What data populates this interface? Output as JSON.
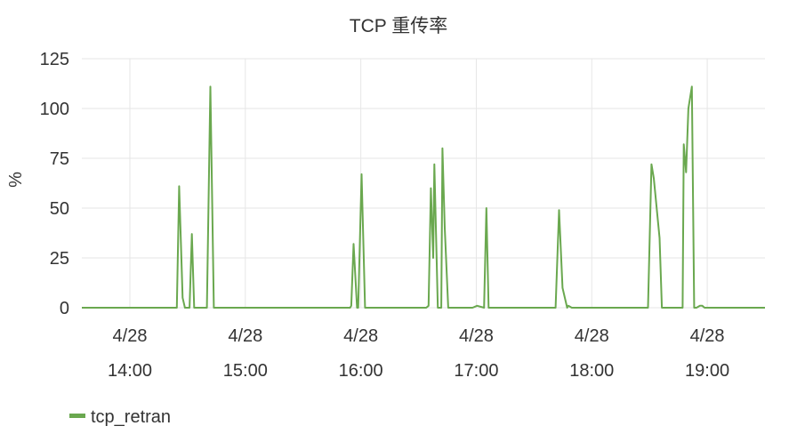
{
  "chart_data": {
    "type": "line",
    "title": "TCP 重传率",
    "ylabel": "%",
    "xlabel": "",
    "ylim": [
      0,
      125
    ],
    "y_ticks": [
      0,
      25,
      50,
      75,
      100,
      125
    ],
    "x_range_hours": [
      13.417,
      19.333
    ],
    "x_ticks": [
      {
        "t": 13.833,
        "date": "4/28",
        "time": "14:00"
      },
      {
        "t": 14.833,
        "date": "4/28",
        "time": "15:00"
      },
      {
        "t": 15.833,
        "date": "4/28",
        "time": "16:00"
      },
      {
        "t": 16.833,
        "date": "4/28",
        "time": "17:00"
      },
      {
        "t": 17.833,
        "date": "4/28",
        "time": "18:00"
      },
      {
        "t": 18.833,
        "date": "4/28",
        "time": "19:00"
      }
    ],
    "grid": true,
    "legend_position": "bottom-left",
    "colors": {
      "series": "#6aa84f",
      "grid": "#e6e6e6",
      "text": "#333333"
    },
    "series": [
      {
        "name": "tcp_retran",
        "x": [
          13.417,
          14.24,
          14.26,
          14.29,
          14.31,
          14.35,
          14.37,
          14.39,
          14.43,
          14.5,
          14.53,
          14.56,
          14.58,
          14.62,
          15.0,
          15.74,
          15.75,
          15.77,
          15.8,
          15.81,
          15.84,
          15.87,
          15.9,
          16.0,
          16.4,
          16.42,
          16.44,
          16.46,
          16.47,
          16.5,
          16.53,
          16.54,
          16.56,
          16.59,
          16.61,
          16.8,
          16.84,
          16.9,
          16.92,
          16.94,
          16.97,
          17.0,
          17.52,
          17.55,
          17.58,
          17.62,
          17.63,
          17.66,
          18.0,
          18.32,
          18.35,
          18.37,
          18.42,
          18.44,
          18.59,
          18.62,
          18.63,
          18.65,
          18.67,
          18.7,
          18.72,
          18.74,
          18.77,
          18.79,
          18.81,
          18.83,
          19.0,
          19.333
        ],
        "values": [
          0,
          0,
          61,
          5,
          0,
          0,
          37,
          0,
          0,
          0,
          111,
          0,
          0,
          0,
          0,
          0,
          1,
          32,
          0,
          0,
          67,
          0,
          0,
          0,
          0,
          1,
          60,
          25,
          72,
          0,
          0,
          80,
          40,
          0,
          0,
          0,
          1,
          0,
          50,
          0,
          0,
          0,
          0,
          49,
          10,
          0,
          1,
          0,
          0,
          0,
          72,
          65,
          35,
          0,
          0,
          0,
          82,
          68,
          100,
          111,
          0,
          0,
          1,
          1,
          0,
          0,
          0,
          0
        ]
      }
    ]
  }
}
